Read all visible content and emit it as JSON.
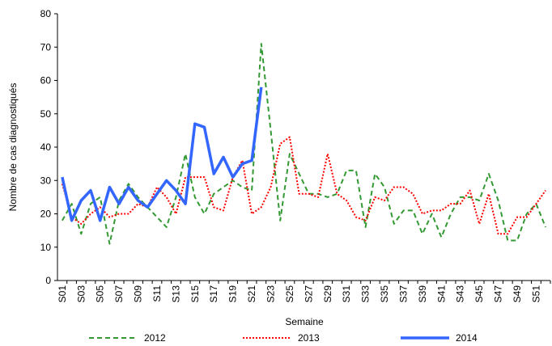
{
  "chart_data": {
    "type": "line",
    "x_label": "Semaine",
    "y_label": "Nombre de cas diagnostiqués",
    "categories": [
      "S01",
      null,
      "S03",
      null,
      "S05",
      null,
      "S07",
      null,
      "S09",
      null,
      "S11",
      null,
      "S13",
      null,
      "S15",
      null,
      "S17",
      null,
      "S19",
      null,
      "S21",
      null,
      "S23",
      null,
      "S25",
      null,
      "S27",
      null,
      "S29",
      null,
      "S31",
      null,
      "S33",
      null,
      "S35",
      null,
      "S37",
      null,
      "S39",
      null,
      "S41",
      null,
      "S43",
      null,
      "S45",
      null,
      "S47",
      null,
      "S49",
      null,
      "S51",
      null
    ],
    "ylim": [
      0,
      80
    ],
    "yticks": [
      0,
      10,
      20,
      30,
      40,
      50,
      60,
      70,
      80
    ],
    "series": [
      {
        "name": "2012",
        "color": "#339933",
        "dash": "6,4",
        "width": 2,
        "values": [
          18,
          23,
          14,
          23,
          25,
          11,
          24,
          29,
          25,
          22,
          19,
          16,
          25,
          38,
          25,
          20,
          26,
          28,
          30,
          28,
          27,
          71,
          45,
          18,
          38,
          32,
          26,
          26,
          25,
          26,
          33,
          33,
          16,
          32,
          28,
          17,
          21,
          21,
          14,
          20,
          13,
          20,
          25,
          25,
          24,
          32,
          24,
          12,
          12,
          20,
          23,
          16
        ]
      },
      {
        "name": "2013",
        "color": "#ff0000",
        "dash": "2,2",
        "width": 2,
        "values": [
          29,
          19,
          17,
          20,
          22,
          19,
          20,
          20,
          23,
          22,
          28,
          25,
          20,
          31,
          31,
          31,
          22,
          21,
          31,
          36,
          20,
          22,
          28,
          41,
          43,
          26,
          26,
          25,
          38,
          26,
          24,
          19,
          18,
          25,
          24,
          28,
          28,
          26,
          20,
          21,
          21,
          23,
          23,
          27,
          17,
          26,
          14,
          14,
          19,
          19,
          23,
          27
        ]
      },
      {
        "name": "2014",
        "color": "#3366ff",
        "dash": "",
        "width": 3.5,
        "values": [
          31,
          18,
          24,
          27,
          18,
          28,
          23,
          28,
          24,
          22,
          26,
          30,
          27,
          23,
          47,
          46,
          32,
          37,
          31,
          35,
          36,
          58,
          null,
          null,
          null,
          null,
          null,
          null,
          null,
          null,
          null,
          null,
          null,
          null,
          null,
          null,
          null,
          null,
          null,
          null,
          null,
          null,
          null,
          null,
          null,
          null,
          null,
          null,
          null,
          null,
          null,
          null
        ]
      }
    ]
  }
}
